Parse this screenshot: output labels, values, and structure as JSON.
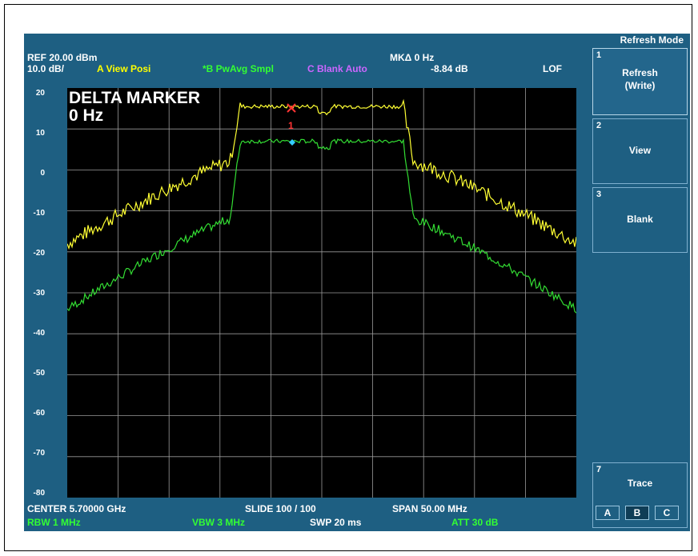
{
  "header": {
    "ref": "REF  20.00 dBm",
    "scale": "10.0 dB/",
    "trace_a": "A View Posi",
    "trace_b": "*B PwAvg Smpl",
    "trace_c": "C Blank Auto",
    "marker_label": "MKΔ 0 Hz",
    "marker_value": "-8.84 dB",
    "lof": "LOF"
  },
  "overlay": {
    "title": "DELTA MARKER",
    "value": "0 Hz",
    "marker_num": "1"
  },
  "y_ticks": [
    "20",
    "10",
    "0",
    "-10",
    "-20",
    "-30",
    "-40",
    "-50",
    "-60",
    "-70",
    "-80"
  ],
  "footer": {
    "center": "CENTER 5.70000 GHz",
    "slide": "SLIDE 100 / 100",
    "span": "SPAN 50.00 MHz",
    "rbw": "RBW 1 MHz",
    "vbw": "VBW 3 MHz",
    "swp": "SWP  20 ms",
    "att": "ATT 30 dB"
  },
  "menu": {
    "title": "Refresh Mode",
    "keys": [
      {
        "num": "1",
        "label1": "Refresh",
        "label2": "(Write)"
      },
      {
        "num": "2",
        "label1": "View"
      },
      {
        "num": "3",
        "label1": "Blank"
      },
      {
        "num": "7",
        "label1": "Trace"
      }
    ],
    "trace_buttons": [
      "A",
      "B",
      "C"
    ],
    "selected_trace": "B"
  },
  "colors": {
    "trace_a": "#ffff33",
    "trace_b": "#33dd33",
    "grid": "#9a9a9a",
    "marker": "#ff3333",
    "marker_delta": "#33ccff"
  }
}
